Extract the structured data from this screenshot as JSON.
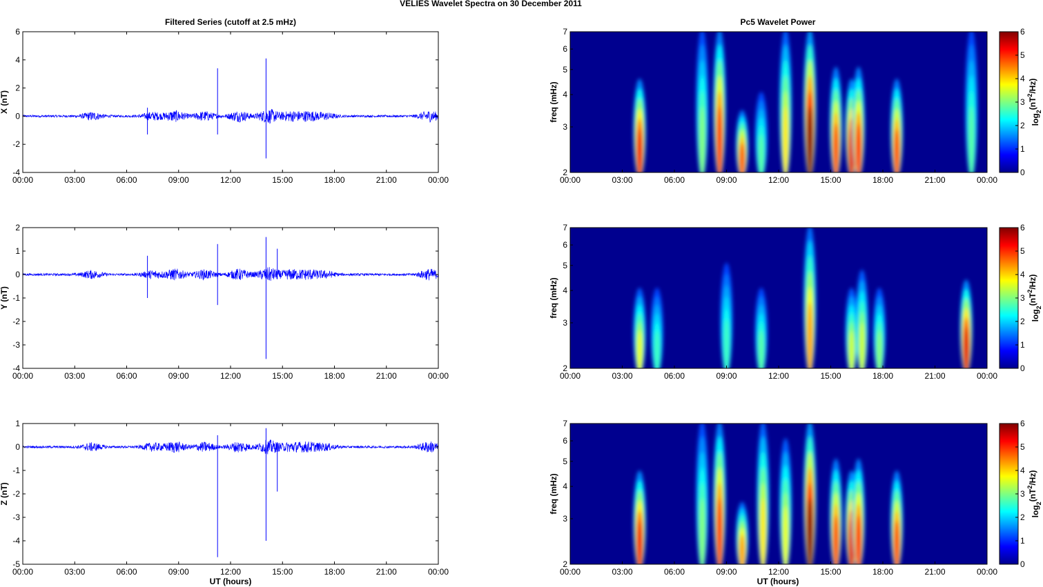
{
  "figure_title": "VELIES Wavelet Spectra on 30 December  2011",
  "chart_data": [
    {
      "type": "line",
      "panel": "X",
      "title": "Filtered Series (cutoff at 2.5 mHz)",
      "ylabel": "X (nT)",
      "xlabel": "",
      "ylim": [
        -4,
        6
      ],
      "yticks": [
        "-4",
        "-2",
        "0",
        "2",
        "4",
        "6"
      ],
      "xticks": [
        "00:00",
        "03:00",
        "06:00",
        "09:00",
        "12:00",
        "15:00",
        "18:00",
        "21:00",
        "00:00"
      ],
      "xlim_hours": [
        0,
        24
      ],
      "color": "#0000ff",
      "spikes": [
        {
          "hour": 11.25,
          "min": -1.3,
          "max": 3.4
        },
        {
          "hour": 14.05,
          "min": -3.0,
          "max": 4.1
        },
        {
          "hour": 7.2,
          "min": -1.3,
          "max": 0.6
        }
      ]
    },
    {
      "type": "heatmap",
      "panel": "X",
      "title": "Pc5 Wavelet Power",
      "ylabel": "freq (mHz)",
      "ylim": [
        2,
        7
      ],
      "yticks": [
        "2",
        "3",
        "4",
        "5",
        "6",
        "7"
      ],
      "xticks": [
        "00:00",
        "03:00",
        "06:00",
        "09:00",
        "12:00",
        "15:00",
        "18:00",
        "21:00",
        "00:00"
      ],
      "colorbar_label": "log2(nT2/Hz)",
      "colorbar_ticks": [
        "0",
        "1",
        "2",
        "3",
        "4",
        "5",
        "6"
      ],
      "blobs": [
        {
          "hour": 4.0,
          "power": 5.2,
          "top_mhz": 4.5
        },
        {
          "hour": 8.6,
          "power": 4.8,
          "top_mhz": 7
        },
        {
          "hour": 9.9,
          "power": 4.5,
          "top_mhz": 3.4
        },
        {
          "hour": 12.4,
          "power": 3.5,
          "top_mhz": 7
        },
        {
          "hour": 13.8,
          "power": 6,
          "top_mhz": 7
        },
        {
          "hour": 15.3,
          "power": 4.6,
          "top_mhz": 5
        },
        {
          "hour": 16.2,
          "power": 5.3,
          "top_mhz": 4.5
        },
        {
          "hour": 16.6,
          "power": 4.8,
          "top_mhz": 5
        },
        {
          "hour": 18.8,
          "power": 4.6,
          "top_mhz": 4.5
        },
        {
          "hour": 7.6,
          "power": 2.5,
          "top_mhz": 7
        },
        {
          "hour": 11.0,
          "power": 2.2,
          "top_mhz": 4
        },
        {
          "hour": 23.1,
          "power": 2.2,
          "top_mhz": 7
        }
      ]
    },
    {
      "type": "line",
      "panel": "Y",
      "ylabel": "Y (nT)",
      "xlabel": "",
      "ylim": [
        -4,
        2
      ],
      "yticks": [
        "-4",
        "-3",
        "-2",
        "-1",
        "0",
        "1",
        "2"
      ],
      "xticks": [
        "00:00",
        "03:00",
        "06:00",
        "09:00",
        "12:00",
        "15:00",
        "18:00",
        "21:00",
        "00:00"
      ],
      "xlim_hours": [
        0,
        24
      ],
      "color": "#0000ff",
      "spikes": [
        {
          "hour": 11.25,
          "min": -1.3,
          "max": 1.3
        },
        {
          "hour": 14.05,
          "min": -3.6,
          "max": 1.6
        },
        {
          "hour": 7.2,
          "min": -1.0,
          "max": 0.8
        },
        {
          "hour": 14.7,
          "min": -0.2,
          "max": 1.1
        }
      ]
    },
    {
      "type": "heatmap",
      "panel": "Y",
      "ylabel": "freq (mHz)",
      "ylim": [
        2,
        7
      ],
      "yticks": [
        "2",
        "3",
        "4",
        "5",
        "6",
        "7"
      ],
      "xticks": [
        "00:00",
        "03:00",
        "06:00",
        "09:00",
        "12:00",
        "15:00",
        "18:00",
        "21:00",
        "00:00"
      ],
      "colorbar_label": "log2(nT2/Hz)",
      "colorbar_ticks": [
        "0",
        "1",
        "2",
        "3",
        "4",
        "5",
        "6"
      ],
      "blobs": [
        {
          "hour": 4.0,
          "power": 3.2,
          "top_mhz": 4
        },
        {
          "hour": 5.0,
          "power": 2.0,
          "top_mhz": 4
        },
        {
          "hour": 9.0,
          "power": 2.0,
          "top_mhz": 5
        },
        {
          "hour": 11.0,
          "power": 2.2,
          "top_mhz": 4
        },
        {
          "hour": 13.8,
          "power": 4.0,
          "top_mhz": 7
        },
        {
          "hour": 16.2,
          "power": 3.0,
          "top_mhz": 4
        },
        {
          "hour": 16.8,
          "power": 3.0,
          "top_mhz": 4.7
        },
        {
          "hour": 17.8,
          "power": 2.5,
          "top_mhz": 4
        },
        {
          "hour": 22.8,
          "power": 5.3,
          "top_mhz": 4.3
        }
      ]
    },
    {
      "type": "line",
      "panel": "Z",
      "ylabel": "Z (nT)",
      "xlabel": "UT (hours)",
      "ylim": [
        -5,
        1
      ],
      "yticks": [
        "-5",
        "-4",
        "-3",
        "-2",
        "-1",
        "0",
        "1"
      ],
      "xticks": [
        "00:00",
        "03:00",
        "06:00",
        "09:00",
        "12:00",
        "15:00",
        "18:00",
        "21:00",
        "00:00"
      ],
      "xlim_hours": [
        0,
        24
      ],
      "color": "#0000ff",
      "spikes": [
        {
          "hour": 11.25,
          "min": -4.7,
          "max": 0.5
        },
        {
          "hour": 14.05,
          "min": -4.0,
          "max": 0.8
        },
        {
          "hour": 14.7,
          "min": -1.9,
          "max": 0.2
        }
      ]
    },
    {
      "type": "heatmap",
      "panel": "Z",
      "ylabel": "freq (mHz)",
      "xlabel": "UT (hours)",
      "ylim": [
        2,
        7
      ],
      "yticks": [
        "2",
        "3",
        "4",
        "5",
        "6",
        "7"
      ],
      "xticks": [
        "00:00",
        "03:00",
        "06:00",
        "09:00",
        "12:00",
        "15:00",
        "18:00",
        "21:00",
        "00:00"
      ],
      "colorbar_label": "log2(nT2/Hz)",
      "colorbar_ticks": [
        "0",
        "1",
        "2",
        "3",
        "4",
        "5",
        "6"
      ],
      "blobs": [
        {
          "hour": 4.0,
          "power": 5.2,
          "top_mhz": 4.5
        },
        {
          "hour": 8.6,
          "power": 4.8,
          "top_mhz": 7
        },
        {
          "hour": 9.9,
          "power": 4.0,
          "top_mhz": 3.4
        },
        {
          "hour": 11.1,
          "power": 3.5,
          "top_mhz": 7
        },
        {
          "hour": 12.4,
          "power": 3.2,
          "top_mhz": 6
        },
        {
          "hour": 13.8,
          "power": 6,
          "top_mhz": 7
        },
        {
          "hour": 15.3,
          "power": 4.6,
          "top_mhz": 5
        },
        {
          "hour": 16.2,
          "power": 5.3,
          "top_mhz": 4.5
        },
        {
          "hour": 16.6,
          "power": 4.8,
          "top_mhz": 5
        },
        {
          "hour": 18.8,
          "power": 4.6,
          "top_mhz": 4.5
        },
        {
          "hour": 7.6,
          "power": 2.5,
          "top_mhz": 7
        }
      ]
    }
  ]
}
